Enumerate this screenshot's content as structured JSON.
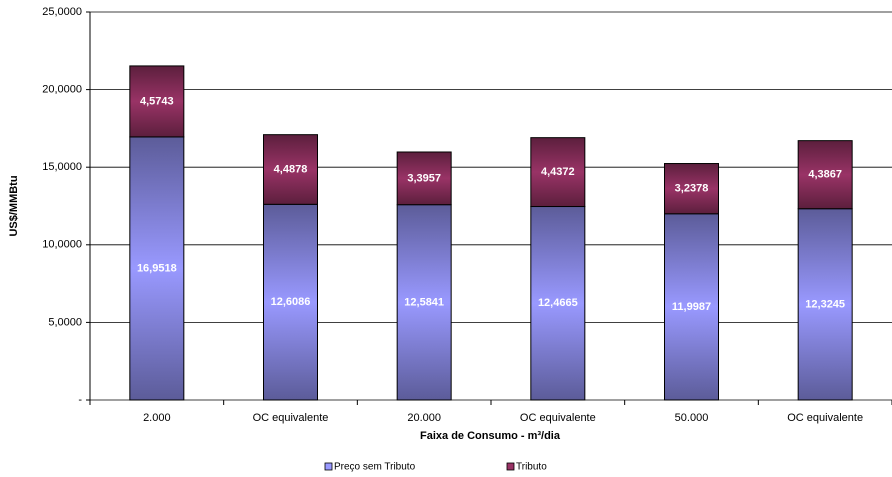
{
  "chart_data": {
    "type": "stacked-bar",
    "y_label": "US$/MMBtu",
    "x_label": "Faixa de Consumo - m³/dia",
    "categories": [
      "2.000",
      "OC equivalente",
      "20.000",
      "OC equivalente",
      "50.000",
      "OC equivalente"
    ],
    "series": [
      {
        "name": "Preço sem Tributo",
        "color": "#9999ff",
        "values": [
          16.9518,
          12.6086,
          12.5841,
          12.4665,
          11.9987,
          12.3245
        ],
        "value_labels": [
          "16,9518",
          "12,6086",
          "12,5841",
          "12,4665",
          "11,9987",
          "12,3245"
        ]
      },
      {
        "name": "Tributo",
        "color": "#993366",
        "values": [
          4.5743,
          4.4878,
          3.3957,
          4.4372,
          3.2378,
          4.3867
        ],
        "value_labels": [
          "4,5743",
          "4,4878",
          "3,3957",
          "4,4372",
          "3,2378",
          "4,3867"
        ]
      }
    ],
    "ylim": [
      0,
      25
    ],
    "yticks": [
      {
        "value": 0,
        "label": "-"
      },
      {
        "value": 5,
        "label": "5,0000"
      },
      {
        "value": 10,
        "label": "10,0000"
      },
      {
        "value": 15,
        "label": "15,0000"
      },
      {
        "value": 20,
        "label": "20,0000"
      },
      {
        "value": 25,
        "label": "25,0000"
      }
    ],
    "grid": true,
    "legend": "bottom"
  }
}
